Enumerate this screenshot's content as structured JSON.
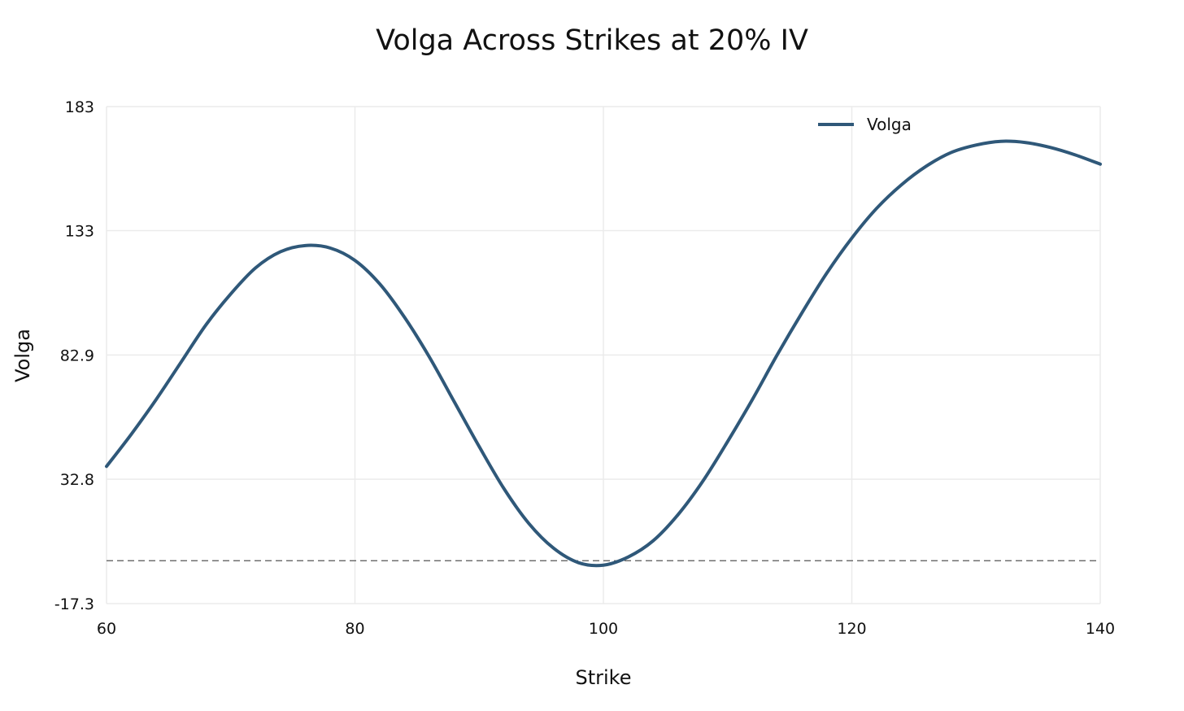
{
  "chart_data": {
    "type": "line",
    "title": "Volga Across Strikes at 20% IV",
    "xlabel": "Strike",
    "ylabel": "Volga",
    "xlim": [
      60,
      140
    ],
    "ylim": [
      -17.3,
      183
    ],
    "x_ticks": [
      60,
      80,
      100,
      120,
      140
    ],
    "x_tick_labels": [
      "60",
      "80",
      "100",
      "120",
      "140"
    ],
    "y_ticks": [
      -17.3,
      32.8,
      82.9,
      133,
      183
    ],
    "y_tick_labels": [
      "-17.3",
      "32.8",
      "82.9",
      "133",
      "183"
    ],
    "grid": true,
    "legend_position": "top-right",
    "reference_line": {
      "y": 0,
      "style": "dashed",
      "color": "#555555"
    },
    "series": [
      {
        "name": "Volga",
        "color": "#2f5879",
        "x": [
          60,
          62,
          64,
          66,
          68,
          70,
          72,
          74,
          76,
          78,
          80,
          82,
          84,
          86,
          88,
          90,
          92,
          94,
          96,
          98,
          100,
          102,
          104,
          106,
          108,
          110,
          112,
          114,
          116,
          118,
          120,
          122,
          124,
          126,
          128,
          130,
          132,
          134,
          136,
          138,
          140
        ],
        "y": [
          38,
          51,
          65,
          80,
          95,
          107.5,
          118,
          124.5,
          127,
          126,
          121,
          111.5,
          98,
          82,
          64,
          46,
          29,
          15,
          5,
          -0.8,
          -1.8,
          1.5,
          8,
          18.5,
          32,
          48,
          65,
          83,
          100,
          116,
          130,
          142,
          151.5,
          159,
          164.5,
          167.5,
          169,
          168.5,
          166.5,
          163.5,
          159.8
        ]
      }
    ]
  }
}
